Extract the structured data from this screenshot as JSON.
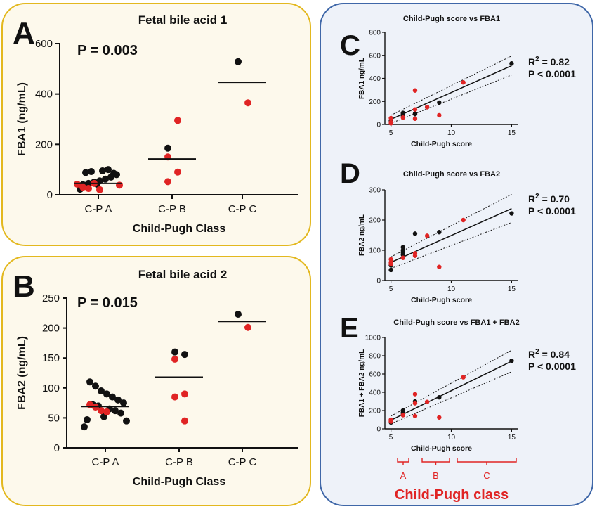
{
  "colors": {
    "black": "#111111",
    "red": "#e02424",
    "panel_left_border": "#e3b81f",
    "panel_left_bg": "#fdf9ec",
    "panel_right_border": "#3f67a8",
    "panel_right_bg": "#eef2f9",
    "bracket_red": "#e02424"
  },
  "bottom_label": {
    "classes": [
      "A",
      "B",
      "C"
    ],
    "title": "Child-Pugh class"
  },
  "chart_data": [
    {
      "panel": "A",
      "type": "scatter",
      "title": "Fetal bile acid 1",
      "pvalue": "P = 0.003",
      "xlabel": "Child-Pugh Class",
      "ylabel": "FBA1 (ng/mL)",
      "categories": [
        "C-P A",
        "C-P B",
        "C-P C"
      ],
      "ylim": [
        0,
        600
      ],
      "yticks": [
        "0",
        "200",
        "400",
        "600"
      ],
      "means": [
        45,
        142,
        446
      ],
      "points": {
        "black": [
          [
            0,
            40
          ],
          [
            0,
            45
          ],
          [
            0,
            50
          ],
          [
            0,
            55
          ],
          [
            0,
            62
          ],
          [
            0,
            70
          ],
          [
            0,
            80
          ],
          [
            0,
            88
          ],
          [
            0,
            92
          ],
          [
            0,
            95
          ],
          [
            0,
            100
          ],
          [
            0,
            85
          ],
          [
            0,
            42
          ],
          [
            0,
            22
          ],
          [
            1,
            185
          ],
          [
            2,
            528
          ]
        ],
        "red": [
          [
            0,
            38
          ],
          [
            0,
            42
          ],
          [
            0,
            30
          ],
          [
            0,
            25
          ],
          [
            0,
            45
          ],
          [
            0,
            20
          ],
          [
            1,
            295
          ],
          [
            1,
            150
          ],
          [
            1,
            90
          ],
          [
            1,
            52
          ],
          [
            2,
            365
          ]
        ]
      }
    },
    {
      "panel": "B",
      "type": "scatter",
      "title": "Fetal bile acid 2",
      "pvalue": "P = 0.015",
      "xlabel": "Child-Pugh Class",
      "ylabel": "FBA2 (ng/mL)",
      "categories": [
        "C-P A",
        "C-P B",
        "C-P C"
      ],
      "ylim": [
        0,
        250
      ],
      "yticks": [
        "0",
        "50",
        "100",
        "150",
        "200",
        "250"
      ],
      "means": [
        69,
        118,
        211
      ],
      "points": {
        "black": [
          [
            0,
            110
          ],
          [
            0,
            103
          ],
          [
            0,
            95
          ],
          [
            0,
            90
          ],
          [
            0,
            85
          ],
          [
            0,
            80
          ],
          [
            0,
            75
          ],
          [
            0,
            72
          ],
          [
            0,
            70
          ],
          [
            0,
            65
          ],
          [
            0,
            62
          ],
          [
            0,
            58
          ],
          [
            0,
            52
          ],
          [
            0,
            47
          ],
          [
            0,
            45
          ],
          [
            0,
            35
          ],
          [
            1,
            160
          ],
          [
            1,
            156
          ],
          [
            2,
            223
          ]
        ],
        "red": [
          [
            0,
            72
          ],
          [
            0,
            68
          ],
          [
            0,
            62
          ],
          [
            0,
            60
          ],
          [
            1,
            148
          ],
          [
            1,
            90
          ],
          [
            1,
            85
          ],
          [
            1,
            45
          ],
          [
            2,
            201
          ]
        ]
      }
    },
    {
      "panel": "C",
      "type": "scatter",
      "title": "Child-Pugh score vs FBA1",
      "xlabel": "Child-Pugh score",
      "ylabel": "FBA1 ng/mL",
      "xlim": [
        4.5,
        15.5
      ],
      "ylim": [
        0,
        800
      ],
      "xticks": [
        "5",
        "10",
        "15"
      ],
      "yticks": [
        "0",
        "200",
        "400",
        "600",
        "800"
      ],
      "r2": "R",
      "r2_value": "2",
      "r2_rest": " = 0.82",
      "p": "P < 0.0001",
      "fit": {
        "x": [
          5,
          15
        ],
        "y": [
          45,
          510
        ]
      },
      "ci_upper": {
        "x": [
          5,
          15
        ],
        "y": [
          80,
          595
        ]
      },
      "ci_lower": {
        "x": [
          5,
          15
        ],
        "y": [
          10,
          430
        ]
      },
      "points": {
        "black": [
          [
            5,
            25
          ],
          [
            5,
            35
          ],
          [
            6,
            75
          ],
          [
            6,
            95
          ],
          [
            6,
            100
          ],
          [
            7,
            90
          ],
          [
            7,
            95
          ],
          [
            8,
            150
          ],
          [
            9,
            190
          ],
          [
            15,
            530
          ]
        ],
        "red": [
          [
            5,
            55
          ],
          [
            5,
            20
          ],
          [
            5,
            10
          ],
          [
            6,
            60
          ],
          [
            7,
            295
          ],
          [
            7,
            130
          ],
          [
            7,
            50
          ],
          [
            8,
            150
          ],
          [
            9,
            80
          ],
          [
            11,
            365
          ]
        ]
      }
    },
    {
      "panel": "D",
      "type": "scatter",
      "title": "Child-Pugh score vs FBA2",
      "xlabel": "Child-Pugh score",
      "ylabel": "FBA2 ng/mL",
      "xlim": [
        4.5,
        15.5
      ],
      "ylim": [
        0,
        300
      ],
      "xticks": [
        "5",
        "10",
        "15"
      ],
      "yticks": [
        "0",
        "100",
        "200",
        "300"
      ],
      "r2": "R",
      "r2_value": "2",
      "r2_rest": " = 0.70",
      "p": "P < 0.0001",
      "fit": {
        "x": [
          5,
          15
        ],
        "y": [
          60,
          238
        ]
      },
      "ci_upper": {
        "x": [
          5,
          15
        ],
        "y": [
          78,
          285
        ]
      },
      "ci_lower": {
        "x": [
          5,
          15
        ],
        "y": [
          40,
          192
        ]
      },
      "points": {
        "black": [
          [
            5,
            35
          ],
          [
            5,
            50
          ],
          [
            6,
            85
          ],
          [
            6,
            92
          ],
          [
            6,
            100
          ],
          [
            6,
            110
          ],
          [
            7,
            155
          ],
          [
            9,
            160
          ],
          [
            15,
            222
          ]
        ],
        "red": [
          [
            5,
            70
          ],
          [
            5,
            60
          ],
          [
            5,
            55
          ],
          [
            6,
            75
          ],
          [
            7,
            90
          ],
          [
            7,
            82
          ],
          [
            8,
            148
          ],
          [
            9,
            45
          ],
          [
            11,
            200
          ]
        ]
      }
    },
    {
      "panel": "E",
      "type": "scatter",
      "title": "Child-Pugh score vs FBA1 + FBA2",
      "xlabel": "Child-Pugh score",
      "ylabel": "FBA1 + FBA2 ng/mL",
      "xlim": [
        4.5,
        15.5
      ],
      "ylim": [
        0,
        1000
      ],
      "xticks": [
        "5",
        "10",
        "15"
      ],
      "yticks": [
        "0",
        "200",
        "400",
        "600",
        "800",
        "1000"
      ],
      "r2": "R",
      "r2_value": "2",
      "r2_rest": " = 0.84",
      "p": "P < 0.0001",
      "fit": {
        "x": [
          5,
          15
        ],
        "y": [
          95,
          740
        ]
      },
      "ci_upper": {
        "x": [
          5,
          15
        ],
        "y": [
          140,
          860
        ]
      },
      "ci_lower": {
        "x": [
          5,
          15
        ],
        "y": [
          55,
          625
        ]
      },
      "points": {
        "black": [
          [
            5,
            70
          ],
          [
            6,
            160
          ],
          [
            6,
            180
          ],
          [
            6,
            200
          ],
          [
            7,
            300
          ],
          [
            9,
            345
          ],
          [
            15,
            745
          ]
        ],
        "red": [
          [
            5,
            100
          ],
          [
            5,
            90
          ],
          [
            5,
            80
          ],
          [
            6,
            150
          ],
          [
            7,
            380
          ],
          [
            7,
            280
          ],
          [
            7,
            140
          ],
          [
            8,
            295
          ],
          [
            9,
            125
          ],
          [
            11,
            565
          ]
        ]
      }
    }
  ]
}
